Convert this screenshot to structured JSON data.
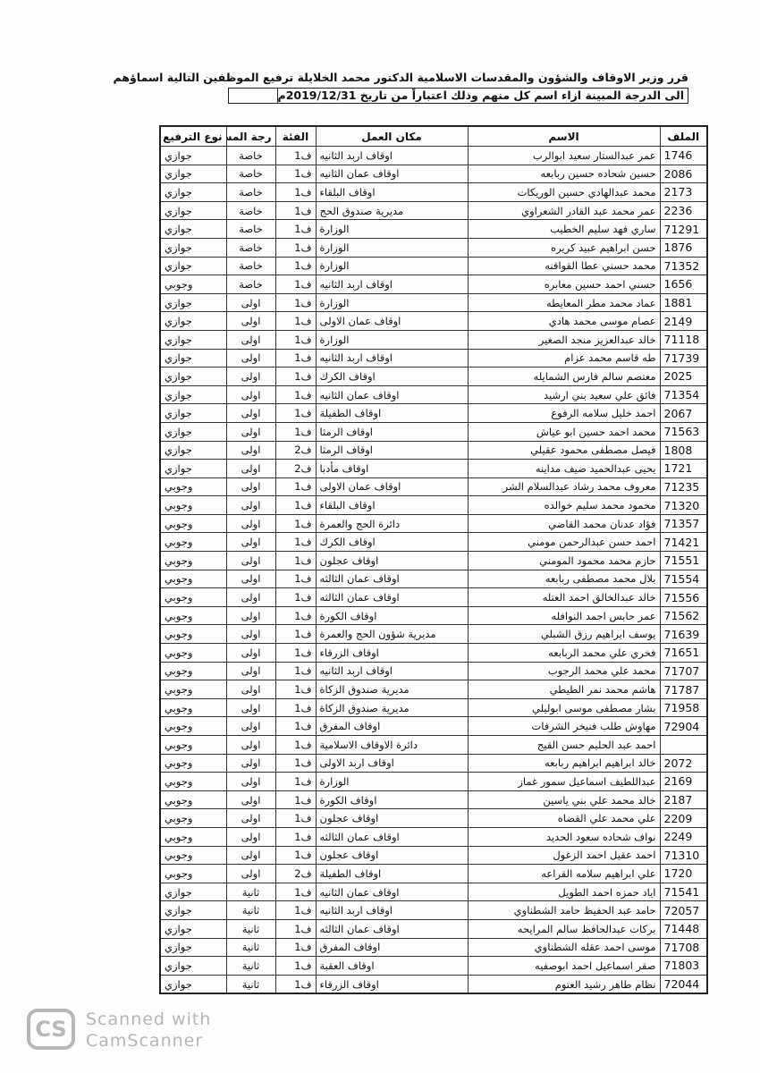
{
  "document": {
    "title_line1": "قرر وزير الاوقاف والشؤون والمقدسات الاسلامية الدكتور محمد الخلايلة ترفيع الموظفين التالية اسماؤهم",
    "title_line2": "الى الدرجة المبينة ازاء اسم كل منهم وذلك اعتباراً من تاريخ 2019/12/31م"
  },
  "table": {
    "headers": [
      "الملف",
      "الاسم",
      "مكان العمل",
      "الفئة",
      "رجة المستو",
      "نوع الترفيع"
    ],
    "rows": [
      [
        "1746",
        "عمر عبدالستار سعيد ابوالرب",
        "اوقاف اربد الثانيه",
        "ف1",
        "خاصة",
        "جوازي"
      ],
      [
        "2086",
        "حسين شحاده حسين ربابعه",
        "اوقاف عمان الثانيه",
        "ف1",
        "خاصة",
        "جوازي"
      ],
      [
        "2173",
        "محمد عبدالهادي حسين الوريكات",
        "اوقاف البلقاء",
        "ف1",
        "خاصة",
        "جوازي"
      ],
      [
        "2236",
        "عمر محمد عبد القادر الشعراوي",
        "مديرية صندوق الحج",
        "ف1",
        "خاصة",
        "جوازي"
      ],
      [
        "71291",
        "ساري فهد سليم الخطيب",
        "الوزارة",
        "ف1",
        "خاصة",
        "جوازي"
      ],
      [
        "1876",
        "حسن ابراهيم عبيد كريره",
        "الوزارة",
        "ف1",
        "خاصة",
        "جوازي"
      ],
      [
        "71352",
        "محمد حسني عطا القواقنه",
        "الوزارة",
        "ف1",
        "خاصة",
        "جوازي"
      ],
      [
        "1656",
        "حسني احمد حسين معابره",
        "اوقاف اربد الثانيه",
        "ف1",
        "خاصة",
        "وجوبي"
      ],
      [
        "1881",
        "عماد محمد مطر المعايطه",
        "الوزارة",
        "ف1",
        "اولى",
        "جوازي"
      ],
      [
        "2149",
        "عصام موسى محمد هادي",
        "اوقاف عمان الاولى",
        "ف1",
        "اولى",
        "جوازي"
      ],
      [
        "71118",
        "خالد عبدالعزيز منجد الصغير",
        "الوزارة",
        "ف1",
        "اولى",
        "جوازي"
      ],
      [
        "71739",
        "طه قاسم محمد عزام",
        "اوقاف اربد الثانيه",
        "ف1",
        "اولى",
        "جوازي"
      ],
      [
        "2025",
        "معتصم سالم فارس الشمايله",
        "اوقاف الكرك",
        "ف1",
        "اولى",
        "جوازي"
      ],
      [
        "71354",
        "فائق علي سعيد بني ارشيد",
        "اوقاف عمان الثانيه",
        "ف1",
        "اولى",
        "جوازي"
      ],
      [
        "2067",
        "احمد خليل سلامه الرفوع",
        "اوقاف الطفيلة",
        "ف1",
        "اولى",
        "جوازي"
      ],
      [
        "71563",
        "محمد احمد حسين ابو عياش",
        "اوقاف الرمثا",
        "ف1",
        "اولى",
        "جوازي"
      ],
      [
        "1808",
        "فيصل مصطفى محمود عقيلي",
        "اوقاف الرمثا",
        "ف2",
        "اولى",
        "جوازي"
      ],
      [
        "1721",
        "يحيى عبدالحميد ضيف مداينه",
        "اوقاف مأدبا",
        "ف2",
        "اولى",
        "جوازي"
      ],
      [
        "71235",
        "معروف محمد رشاد عبدالسلام الشر",
        "اوقاف عمان الاولى",
        "ف1",
        "اولى",
        "وجوبي"
      ],
      [
        "71320",
        "محمود محمد سليم خوالده",
        "اوقاف البلقاء",
        "ف1",
        "اولى",
        "وجوبي"
      ],
      [
        "71357",
        "فؤاد عدنان محمد القاضي",
        "دائرة الحج والعمرة",
        "ف1",
        "اولى",
        "وجوبي"
      ],
      [
        "71421",
        "احمد حسن عبدالرحمن مومني",
        "اوقاف الكرك",
        "ف1",
        "اولى",
        "وجوبي"
      ],
      [
        "71551",
        "حازم محمد محمود المومني",
        "اوقاف عجلون",
        "ف1",
        "اولى",
        "وجوبي"
      ],
      [
        "71554",
        "بلال محمد مصطفى ربابعه",
        "اوقاف عمان الثالثه",
        "ف1",
        "اولى",
        "وجوبي"
      ],
      [
        "71556",
        "خالد عبدالخالق احمد العتله",
        "اوقاف عمان الثالثه",
        "ف1",
        "اولى",
        "وجوبي"
      ],
      [
        "71562",
        "عمر حابس احمد النوافله",
        "اوقاف الكورة",
        "ف1",
        "اولى",
        "وجوبي"
      ],
      [
        "71639",
        "يوسف ابراهيم رزق الشبلي",
        "مديرية شؤون الحج والعمرة",
        "ف1",
        "اولى",
        "وجوبي"
      ],
      [
        "71651",
        "فخري علي محمد الربابعه",
        "اوقاف الزرقاء",
        "ف1",
        "اولى",
        "وجوبي"
      ],
      [
        "71707",
        "محمد علي محمد الرجوب",
        "اوقاف اربد الثانيه",
        "ف1",
        "اولى",
        "وجوبي"
      ],
      [
        "71787",
        "هاشم محمد نمر الطيطي",
        "مديرية صندوق الزكاة",
        "ف1",
        "اولى",
        "وجوبي"
      ],
      [
        "71958",
        "بشار مصطفى موسى ابوليلي",
        "مديرية صندوق الزكاة",
        "ف1",
        "اولى",
        "وجوبي"
      ],
      [
        "72904",
        "مهاوش طلب فنيخر الشرفات",
        "اوقاف المفرق",
        "ف1",
        "اولى",
        "وجوبي"
      ],
      [
        "",
        "احمد عبد الحليم حسن القيج",
        "دائرة الاوقاف الاسلامية",
        "ف1",
        "اولى",
        "وجوبي"
      ],
      [
        "2072",
        "خالد ابراهيم ابراهيم ربابعه",
        "اوقاف اربد الاولى",
        "ف1",
        "اولى",
        "وجوبي"
      ],
      [
        "2169",
        "عبداللطيف اسماعيل سمور غماز",
        "الوزارة",
        "ف1",
        "اولى",
        "وجوبي"
      ],
      [
        "2187",
        "خالد محمد علي بني ياسين",
        "اوقاف الكورة",
        "ف1",
        "اولى",
        "وجوبي"
      ],
      [
        "2209",
        "علي محمد علي القضاه",
        "اوقاف عجلون",
        "ف1",
        "اولى",
        "وجوبي"
      ],
      [
        "2249",
        "نواف شحاده سعود الحديد",
        "اوقاف عمان الثالثه",
        "ف1",
        "اولى",
        "وجوبي"
      ],
      [
        "71310",
        "احمد عقيل احمد الزغول",
        "اوقاف عجلون",
        "ف1",
        "اولى",
        "وجوبي"
      ],
      [
        "1720",
        "علي ابراهيم سلامه القراعه",
        "اوقاف الطفيلة",
        "ف2",
        "اولى",
        "وجوبي"
      ],
      [
        "71541",
        "اياد حمزه احمد الطويل",
        "اوقاف عمان الثانيه",
        "ف1",
        "ثانية",
        "جوازي"
      ],
      [
        "72057",
        "حامد عبد الحفيظ حامد الشطناوي",
        "اوقاف اربد الثانيه",
        "ف1",
        "ثانية",
        "جوازي"
      ],
      [
        "71448",
        "بركات عبدالحافظ سالم المرايحه",
        "اوقاف عمان الثالثه",
        "ف1",
        "ثانية",
        "جوازي"
      ],
      [
        "71708",
        "موسى احمد عقله الشطناوي",
        "اوقاف المفرق",
        "ف1",
        "ثانية",
        "جوازي"
      ],
      [
        "71803",
        "صقر اسماعيل احمد ابوصفيه",
        "اوقاف العقبة",
        "ف1",
        "ثانية",
        "جوازي"
      ],
      [
        "72044",
        "نظام طاهر رشيد العتوم",
        "اوقاف الزرقاء",
        "ف1",
        "ثانية",
        "جوازي"
      ]
    ]
  },
  "watermark": {
    "logo": "CS",
    "line1": "Scanned with",
    "line2": "CamScanner",
    "color": "#b5b5b5"
  }
}
